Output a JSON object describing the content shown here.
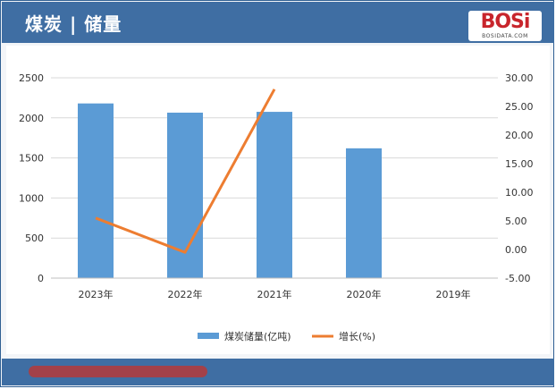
{
  "header": {
    "title": "煤炭 | 储量"
  },
  "logo": {
    "text": "BOSi",
    "subtext": "BOSIDATA.COM",
    "color": "#c8252c"
  },
  "colors": {
    "bar": "#5b9bd5",
    "line": "#ed7d31",
    "header": "#3f6ea3"
  },
  "chart_data": {
    "type": "bar",
    "categories": [
      "2023年",
      "2022年",
      "2021年",
      "2020年",
      "2019年"
    ],
    "series": [
      {
        "name": "煤炭储量(亿吨)",
        "type": "bar",
        "axis": "left",
        "values": [
          2180,
          2065,
          2075,
          1620,
          null
        ]
      },
      {
        "name": "增长(%)",
        "type": "line",
        "axis": "right",
        "values": [
          5.5,
          -0.5,
          28.0,
          null,
          null
        ]
      }
    ],
    "y_left": {
      "min": 0,
      "max": 2500,
      "step": 500,
      "ticks": [
        "0",
        "500",
        "1000",
        "1500",
        "2000",
        "2500"
      ]
    },
    "y_right": {
      "min": -5,
      "max": 30,
      "step": 5,
      "ticks": [
        "-5.00",
        "0.00",
        "5.00",
        "10.00",
        "15.00",
        "20.00",
        "25.00",
        "30.00"
      ]
    },
    "grid": true,
    "legend": "bottom"
  }
}
